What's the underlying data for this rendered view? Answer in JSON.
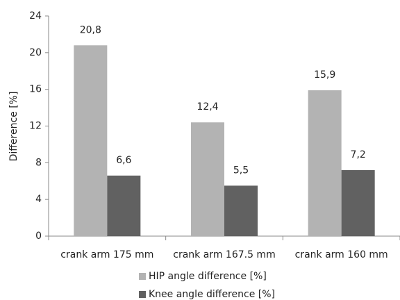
{
  "chart_data": {
    "type": "bar",
    "y_label": "Difference [%]",
    "categories": [
      "crank arm 175 mm",
      "crank arm 167.5 mm",
      "crank arm 160 mm"
    ],
    "series": [
      {
        "name": "HIP angle difference [%]",
        "color": "#b3b3b3",
        "values": [
          20.8,
          12.4,
          15.9
        ],
        "value_labels": [
          "20,8",
          "12,4",
          "15,9"
        ]
      },
      {
        "name": "Knee angle difference [%]",
        "color": "#616161",
        "values": [
          6.6,
          5.5,
          7.2
        ],
        "value_labels": [
          "6,6",
          "5,5",
          "7,2"
        ]
      }
    ],
    "ylim": [
      0,
      24
    ],
    "yticks": [
      0,
      4,
      8,
      12,
      16,
      20,
      24
    ],
    "grid": false,
    "legend": "bottom"
  }
}
